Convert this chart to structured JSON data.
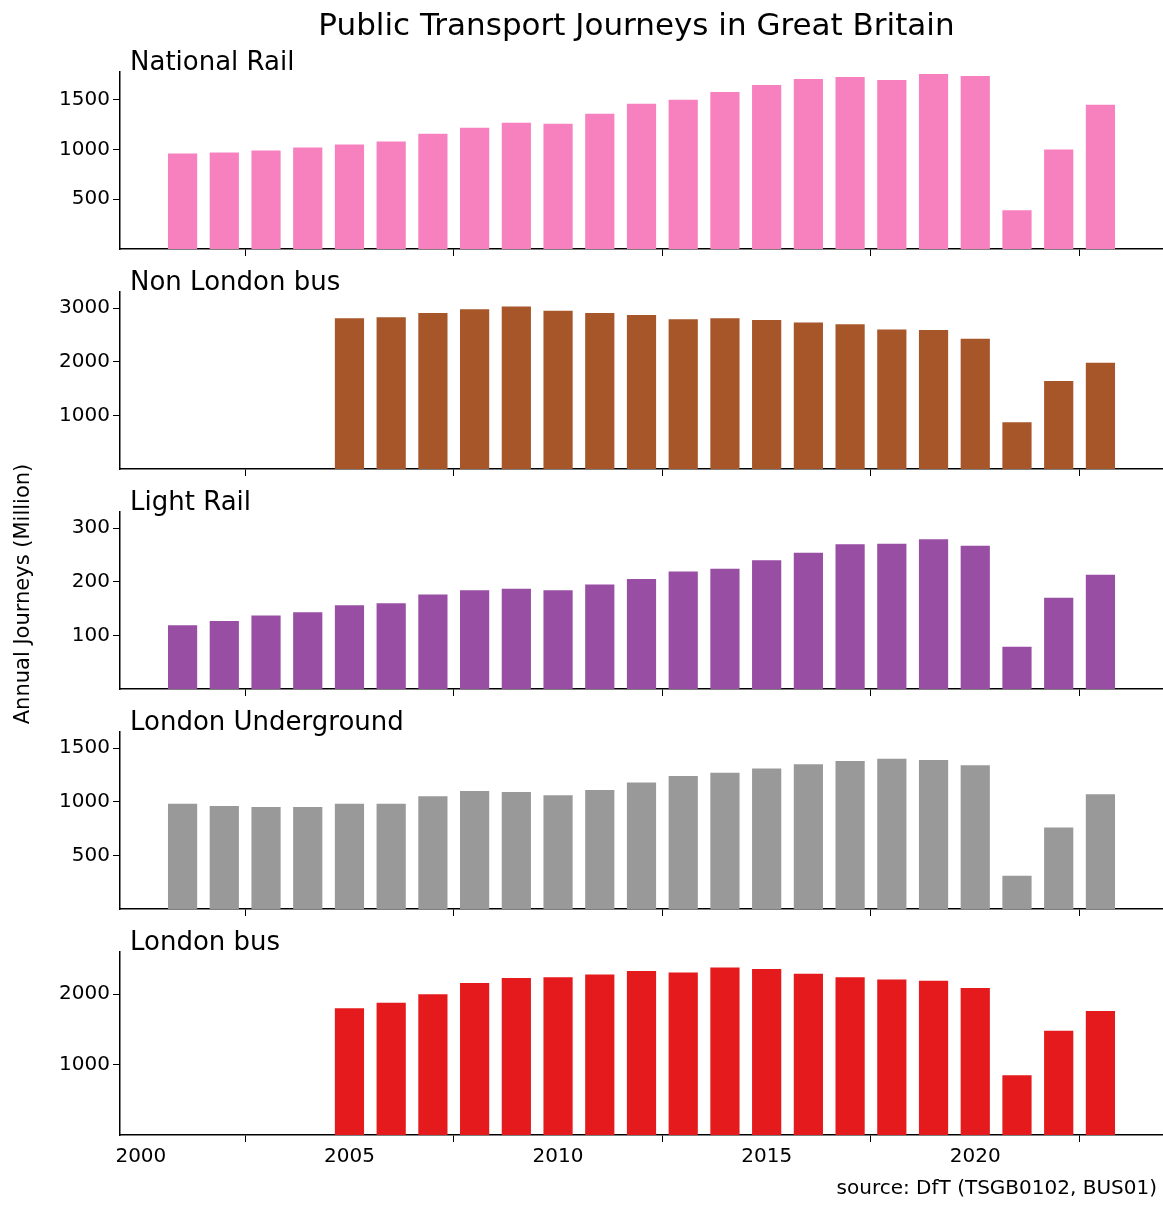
{
  "chart_data": [
    {
      "type": "bar",
      "title": "Public Transport Journeys in Great Britain",
      "subtitle": "National Rail",
      "color": "#f781bf",
      "x": [
        2001,
        2002,
        2003,
        2004,
        2005,
        2006,
        2007,
        2008,
        2009,
        2010,
        2011,
        2012,
        2013,
        2014,
        2015,
        2016,
        2017,
        2018,
        2019,
        2020,
        2021,
        2022,
        2023
      ],
      "values": [
        960,
        970,
        990,
        1020,
        1050,
        1080,
        1160,
        1220,
        1270,
        1260,
        1360,
        1460,
        1500,
        1580,
        1650,
        1710,
        1730,
        1700,
        1760,
        1740,
        390,
        1000,
        1450
      ],
      "xlim": [
        1999.5,
        2024.5
      ],
      "xticks": [
        2000,
        2005,
        2010,
        2015,
        2020
      ],
      "ylim": [
        0,
        1780
      ],
      "yticks": [
        500,
        1000,
        1500
      ],
      "tick_labels": "y"
    },
    {
      "type": "bar",
      "subtitle": "Non London bus",
      "color": "#a65628",
      "x": [
        2005,
        2006,
        2007,
        2008,
        2009,
        2010,
        2011,
        2012,
        2013,
        2014,
        2015,
        2016,
        2017,
        2018,
        2019,
        2020,
        2021,
        2022,
        2023
      ],
      "values": [
        2810,
        2830,
        2910,
        2980,
        3030,
        2950,
        2910,
        2870,
        2790,
        2810,
        2780,
        2730,
        2700,
        2600,
        2590,
        2430,
        870,
        1640,
        1980
      ],
      "xlim": [
        1999.5,
        2024.5
      ],
      "xticks": [
        2000,
        2005,
        2010,
        2015,
        2020
      ],
      "ylim": [
        0,
        3300
      ],
      "yticks": [
        1000,
        2000,
        3000
      ],
      "tick_labels": "y"
    },
    {
      "type": "bar",
      "subtitle": "Light Rail",
      "ylabel": "Annual Journeys (Million)",
      "color": "#984ea3",
      "x": [
        2001,
        2002,
        2003,
        2004,
        2005,
        2006,
        2007,
        2008,
        2009,
        2010,
        2011,
        2012,
        2013,
        2014,
        2015,
        2016,
        2017,
        2018,
        2019,
        2020,
        2021,
        2022,
        2023
      ],
      "values": [
        119,
        127,
        137,
        143,
        156,
        160,
        176,
        184,
        187,
        184,
        195,
        205,
        219,
        224,
        240,
        254,
        270,
        271,
        279,
        267,
        79,
        170,
        213
      ],
      "xlim": [
        1999.5,
        2024.5
      ],
      "xticks": [
        2000,
        2005,
        2010,
        2015,
        2020
      ],
      "ylim": [
        0,
        330
      ],
      "yticks": [
        100,
        200,
        300
      ],
      "tick_labels": "y"
    },
    {
      "type": "bar",
      "subtitle": "London Underground",
      "color": "#999999",
      "x": [
        2001,
        2002,
        2003,
        2004,
        2005,
        2006,
        2007,
        2008,
        2009,
        2010,
        2011,
        2012,
        2013,
        2014,
        2015,
        2016,
        2017,
        2018,
        2019,
        2020,
        2021,
        2022,
        2023
      ],
      "values": [
        980,
        960,
        950,
        950,
        980,
        980,
        1050,
        1100,
        1090,
        1060,
        1110,
        1180,
        1240,
        1270,
        1310,
        1350,
        1380,
        1400,
        1390,
        1340,
        310,
        760,
        1070
      ],
      "xlim": [
        1999.5,
        2024.5
      ],
      "xticks": [
        2000,
        2005,
        2010,
        2015,
        2020
      ],
      "ylim": [
        0,
        1650
      ],
      "yticks": [
        500,
        1000,
        1500
      ],
      "tick_labels": "y"
    },
    {
      "type": "bar",
      "subtitle": "London bus",
      "color": "#e41a1c",
      "x": [
        2005,
        2006,
        2007,
        2008,
        2009,
        2010,
        2011,
        2012,
        2013,
        2014,
        2015,
        2016,
        2017,
        2018,
        2019,
        2020,
        2021,
        2022,
        2023
      ],
      "values": [
        1800,
        1880,
        2000,
        2160,
        2230,
        2240,
        2280,
        2330,
        2310,
        2380,
        2360,
        2290,
        2240,
        2210,
        2190,
        2090,
        850,
        1480,
        1760
      ],
      "xlim": [
        1999.5,
        2024.5
      ],
      "xticks": [
        2000,
        2005,
        2010,
        2015,
        2020
      ],
      "ylim": [
        0,
        2600
      ],
      "yticks": [
        1000,
        2000
      ],
      "annotations": [
        "source: DfT (TSGB0102, BUS01)"
      ]
    }
  ]
}
